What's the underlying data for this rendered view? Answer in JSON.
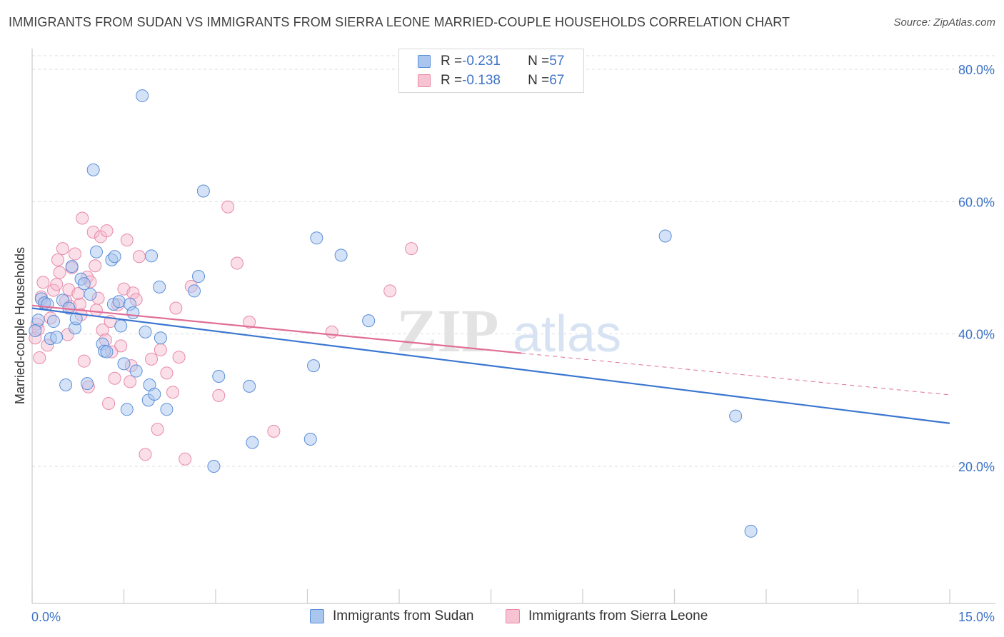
{
  "title": "IMMIGRANTS FROM SUDAN VS IMMIGRANTS FROM SIERRA LEONE MARRIED-COUPLE HOUSEHOLDS CORRELATION CHART",
  "source": "Source: ZipAtlas.com",
  "watermark": {
    "zip": "ZIP",
    "atlas": "atlas"
  },
  "legend": {
    "sudan": {
      "r_label": "R = ",
      "r_value": "-0.231",
      "n_label": "N = ",
      "n_value": "57"
    },
    "sierra": {
      "r_label": "R = ",
      "r_value": "-0.138",
      "n_label": "N = ",
      "n_value": "67"
    }
  },
  "bottom_legend": {
    "sudan": "Immigrants from Sudan",
    "sierra": "Immigrants from Sierra Leone"
  },
  "colors": {
    "sudan_fill": "#a9c6ef",
    "sudan_stroke": "#5b8ed8",
    "sudan_line": "#3a76d0",
    "sierra_fill": "#f7b8cc",
    "sierra_stroke": "#e889a8",
    "sierra_line": "#e06e95",
    "axis_label": "#3d73c7",
    "grid": "#dddddd"
  },
  "chart_data": {
    "type": "scatter",
    "title": "IMMIGRANTS FROM SUDAN VS IMMIGRANTS FROM SIERRA LEONE MARRIED-COUPLE HOUSEHOLDS CORRELATION CHART",
    "xlabel": "",
    "ylabel": "Married-couple Households",
    "xlim": [
      0,
      15
    ],
    "ylim": [
      0,
      83
    ],
    "x_tick_labels": [
      "0.0%",
      "15.0%"
    ],
    "y_ticks": [
      20,
      40,
      60,
      80
    ],
    "y_tick_labels": [
      "20.0%",
      "40.0%",
      "60.0%",
      "80.0%"
    ],
    "grid": true,
    "legend_position": "top-center",
    "series": [
      {
        "name": "Immigrants from Sudan",
        "r": -0.231,
        "n": 57,
        "trend": {
          "x": [
            0,
            15
          ],
          "y": [
            43.9,
            26.5
          ]
        },
        "points": [
          [
            0.1,
            42.1
          ],
          [
            0.15,
            45.3
          ],
          [
            0.2,
            44.7
          ],
          [
            0.25,
            44.5
          ],
          [
            0.3,
            39.3
          ],
          [
            0.35,
            41.9
          ],
          [
            0.4,
            39.5
          ],
          [
            0.5,
            45.1
          ],
          [
            0.55,
            32.3
          ],
          [
            0.6,
            43.9
          ],
          [
            0.65,
            50.2
          ],
          [
            0.7,
            40.9
          ],
          [
            0.72,
            42.3
          ],
          [
            0.8,
            48.3
          ],
          [
            0.85,
            47.6
          ],
          [
            0.9,
            32.5
          ],
          [
            0.95,
            46.0
          ],
          [
            1.0,
            64.8
          ],
          [
            1.05,
            52.4
          ],
          [
            1.15,
            38.5
          ],
          [
            1.18,
            37.4
          ],
          [
            1.22,
            37.3
          ],
          [
            1.3,
            51.2
          ],
          [
            1.33,
            44.5
          ],
          [
            1.35,
            51.7
          ],
          [
            1.42,
            44.9
          ],
          [
            1.45,
            41.2
          ],
          [
            1.5,
            35.5
          ],
          [
            1.55,
            28.6
          ],
          [
            1.6,
            44.5
          ],
          [
            1.65,
            43.2
          ],
          [
            1.7,
            34.4
          ],
          [
            1.8,
            76.0
          ],
          [
            1.85,
            40.3
          ],
          [
            1.9,
            30.0
          ],
          [
            1.92,
            32.3
          ],
          [
            1.95,
            51.8
          ],
          [
            2.0,
            30.9
          ],
          [
            2.08,
            47.1
          ],
          [
            2.1,
            39.4
          ],
          [
            2.2,
            28.6
          ],
          [
            2.65,
            46.5
          ],
          [
            2.72,
            48.7
          ],
          [
            2.8,
            61.6
          ],
          [
            2.97,
            20.0
          ],
          [
            3.05,
            33.6
          ],
          [
            3.55,
            32.1
          ],
          [
            3.6,
            23.6
          ],
          [
            4.55,
            24.1
          ],
          [
            4.6,
            35.2
          ],
          [
            4.65,
            54.5
          ],
          [
            5.05,
            51.9
          ],
          [
            5.5,
            42.0
          ],
          [
            10.35,
            54.8
          ],
          [
            11.5,
            27.6
          ],
          [
            11.75,
            10.2
          ],
          [
            0.05,
            40.5
          ]
        ]
      },
      {
        "name": "Immigrants from Sierra Leone",
        "r": -0.138,
        "n": 67,
        "trend": {
          "x": [
            0,
            8.0
          ],
          "y": [
            44.3,
            37.1
          ]
        },
        "trend_dashed": {
          "x": [
            8.0,
            15
          ],
          "y": [
            37.1,
            30.8
          ]
        },
        "points": [
          [
            0.05,
            39.4
          ],
          [
            0.08,
            41.5
          ],
          [
            0.1,
            40.7
          ],
          [
            0.15,
            45.6
          ],
          [
            0.18,
            47.8
          ],
          [
            0.2,
            44.6
          ],
          [
            0.25,
            38.3
          ],
          [
            0.3,
            42.4
          ],
          [
            0.35,
            46.6
          ],
          [
            0.4,
            47.5
          ],
          [
            0.42,
            51.2
          ],
          [
            0.45,
            49.3
          ],
          [
            0.5,
            52.9
          ],
          [
            0.55,
            45.0
          ],
          [
            0.58,
            39.9
          ],
          [
            0.6,
            46.7
          ],
          [
            0.62,
            44.2
          ],
          [
            0.65,
            50.0
          ],
          [
            0.7,
            52.1
          ],
          [
            0.75,
            46.1
          ],
          [
            0.78,
            44.5
          ],
          [
            0.8,
            42.9
          ],
          [
            0.82,
            57.5
          ],
          [
            0.85,
            35.9
          ],
          [
            0.9,
            48.6
          ],
          [
            0.92,
            32.0
          ],
          [
            0.95,
            47.9
          ],
          [
            1.0,
            55.4
          ],
          [
            1.03,
            50.3
          ],
          [
            1.05,
            43.6
          ],
          [
            1.08,
            45.4
          ],
          [
            1.12,
            54.7
          ],
          [
            1.15,
            40.6
          ],
          [
            1.2,
            39.1
          ],
          [
            1.22,
            55.6
          ],
          [
            1.25,
            29.5
          ],
          [
            1.28,
            41.9
          ],
          [
            1.3,
            37.3
          ],
          [
            1.35,
            33.3
          ],
          [
            1.4,
            44.4
          ],
          [
            1.45,
            38.2
          ],
          [
            1.5,
            46.8
          ],
          [
            1.55,
            54.2
          ],
          [
            1.6,
            32.8
          ],
          [
            1.62,
            35.2
          ],
          [
            1.65,
            46.2
          ],
          [
            1.7,
            45.2
          ],
          [
            1.75,
            51.7
          ],
          [
            1.85,
            21.8
          ],
          [
            1.95,
            36.2
          ],
          [
            2.05,
            25.6
          ],
          [
            2.1,
            37.6
          ],
          [
            2.2,
            34.1
          ],
          [
            2.3,
            31.2
          ],
          [
            2.35,
            43.9
          ],
          [
            2.4,
            36.5
          ],
          [
            2.5,
            21.1
          ],
          [
            2.6,
            47.2
          ],
          [
            3.05,
            30.7
          ],
          [
            3.2,
            59.2
          ],
          [
            3.35,
            50.7
          ],
          [
            3.55,
            41.8
          ],
          [
            3.95,
            25.3
          ],
          [
            4.9,
            40.3
          ],
          [
            5.85,
            46.5
          ],
          [
            6.2,
            52.9
          ],
          [
            0.12,
            36.4
          ]
        ]
      }
    ]
  }
}
